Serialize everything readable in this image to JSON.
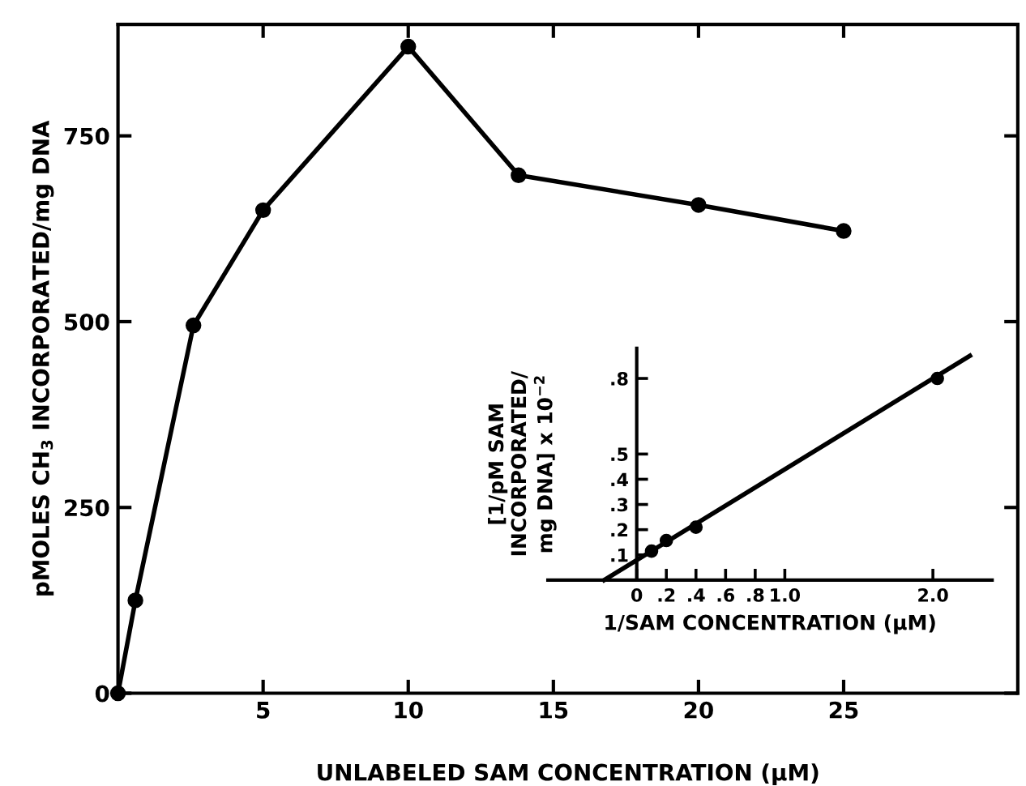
{
  "chart_data": [
    {
      "type": "line",
      "xlabel": "UNLABELED SAM CONCENTRATION (μM)",
      "ylabel": "pMOLES CH$_{3}$ INCORPORATED/mg DNA",
      "x": [
        0,
        0.6,
        2.6,
        5,
        10,
        13.8,
        20,
        25
      ],
      "series": [
        {
          "color": "#000000",
          "values": [
            0,
            125,
            495,
            650,
            870,
            697,
            657,
            622
          ]
        }
      ],
      "xlim": [
        0,
        31
      ],
      "ylim": [
        0,
        900
      ],
      "xticks": [
        5,
        10,
        15,
        20,
        25
      ],
      "yticks": [
        0,
        250,
        500,
        750
      ],
      "marker": "circle",
      "line_style": "solid",
      "grid": false,
      "legend": false
    },
    {
      "type": "scatter",
      "xlabel": "1/SAM CONCENTRATION (μM)",
      "ylabel": "[1/pM SAM\nINCORPORATED/\nmg DNA] x 10$^{−2}$",
      "x": [
        0.1,
        0.2,
        0.4,
        2.03
      ],
      "series": [
        {
          "color": "#000000",
          "values": [
            0.115,
            0.157,
            0.21,
            0.8
          ]
        },
        {
          "type": "line",
          "marker": "none",
          "color": "#000000",
          "x": [
            -0.22,
            2.25
          ],
          "values": [
            0,
            0.89
          ]
        }
      ],
      "xlim": [
        -0.6,
        2.4
      ],
      "ylim": [
        0,
        0.92
      ],
      "xticks": [
        {
          "value": 0,
          "label": "0"
        },
        {
          "value": 0.2,
          "label": ".2"
        },
        {
          "value": 0.4,
          "label": ".4"
        },
        {
          "value": 0.6,
          "label": ".6"
        },
        {
          "value": 0.8,
          "label": ".8"
        },
        {
          "value": 1.0,
          "label": "1.0"
        },
        {
          "value": 2.0,
          "label": "2.0"
        }
      ],
      "yticks": [
        {
          "value": 0.1,
          "label": ".1"
        },
        {
          "value": 0.2,
          "label": ".2"
        },
        {
          "value": 0.3,
          "label": ".3"
        },
        {
          "value": 0.4,
          "label": ".4"
        },
        {
          "value": 0.5,
          "label": ".5"
        },
        {
          "value": 0.8,
          "label": ".8"
        }
      ],
      "marker": "circle",
      "grid": false,
      "legend": false
    }
  ]
}
